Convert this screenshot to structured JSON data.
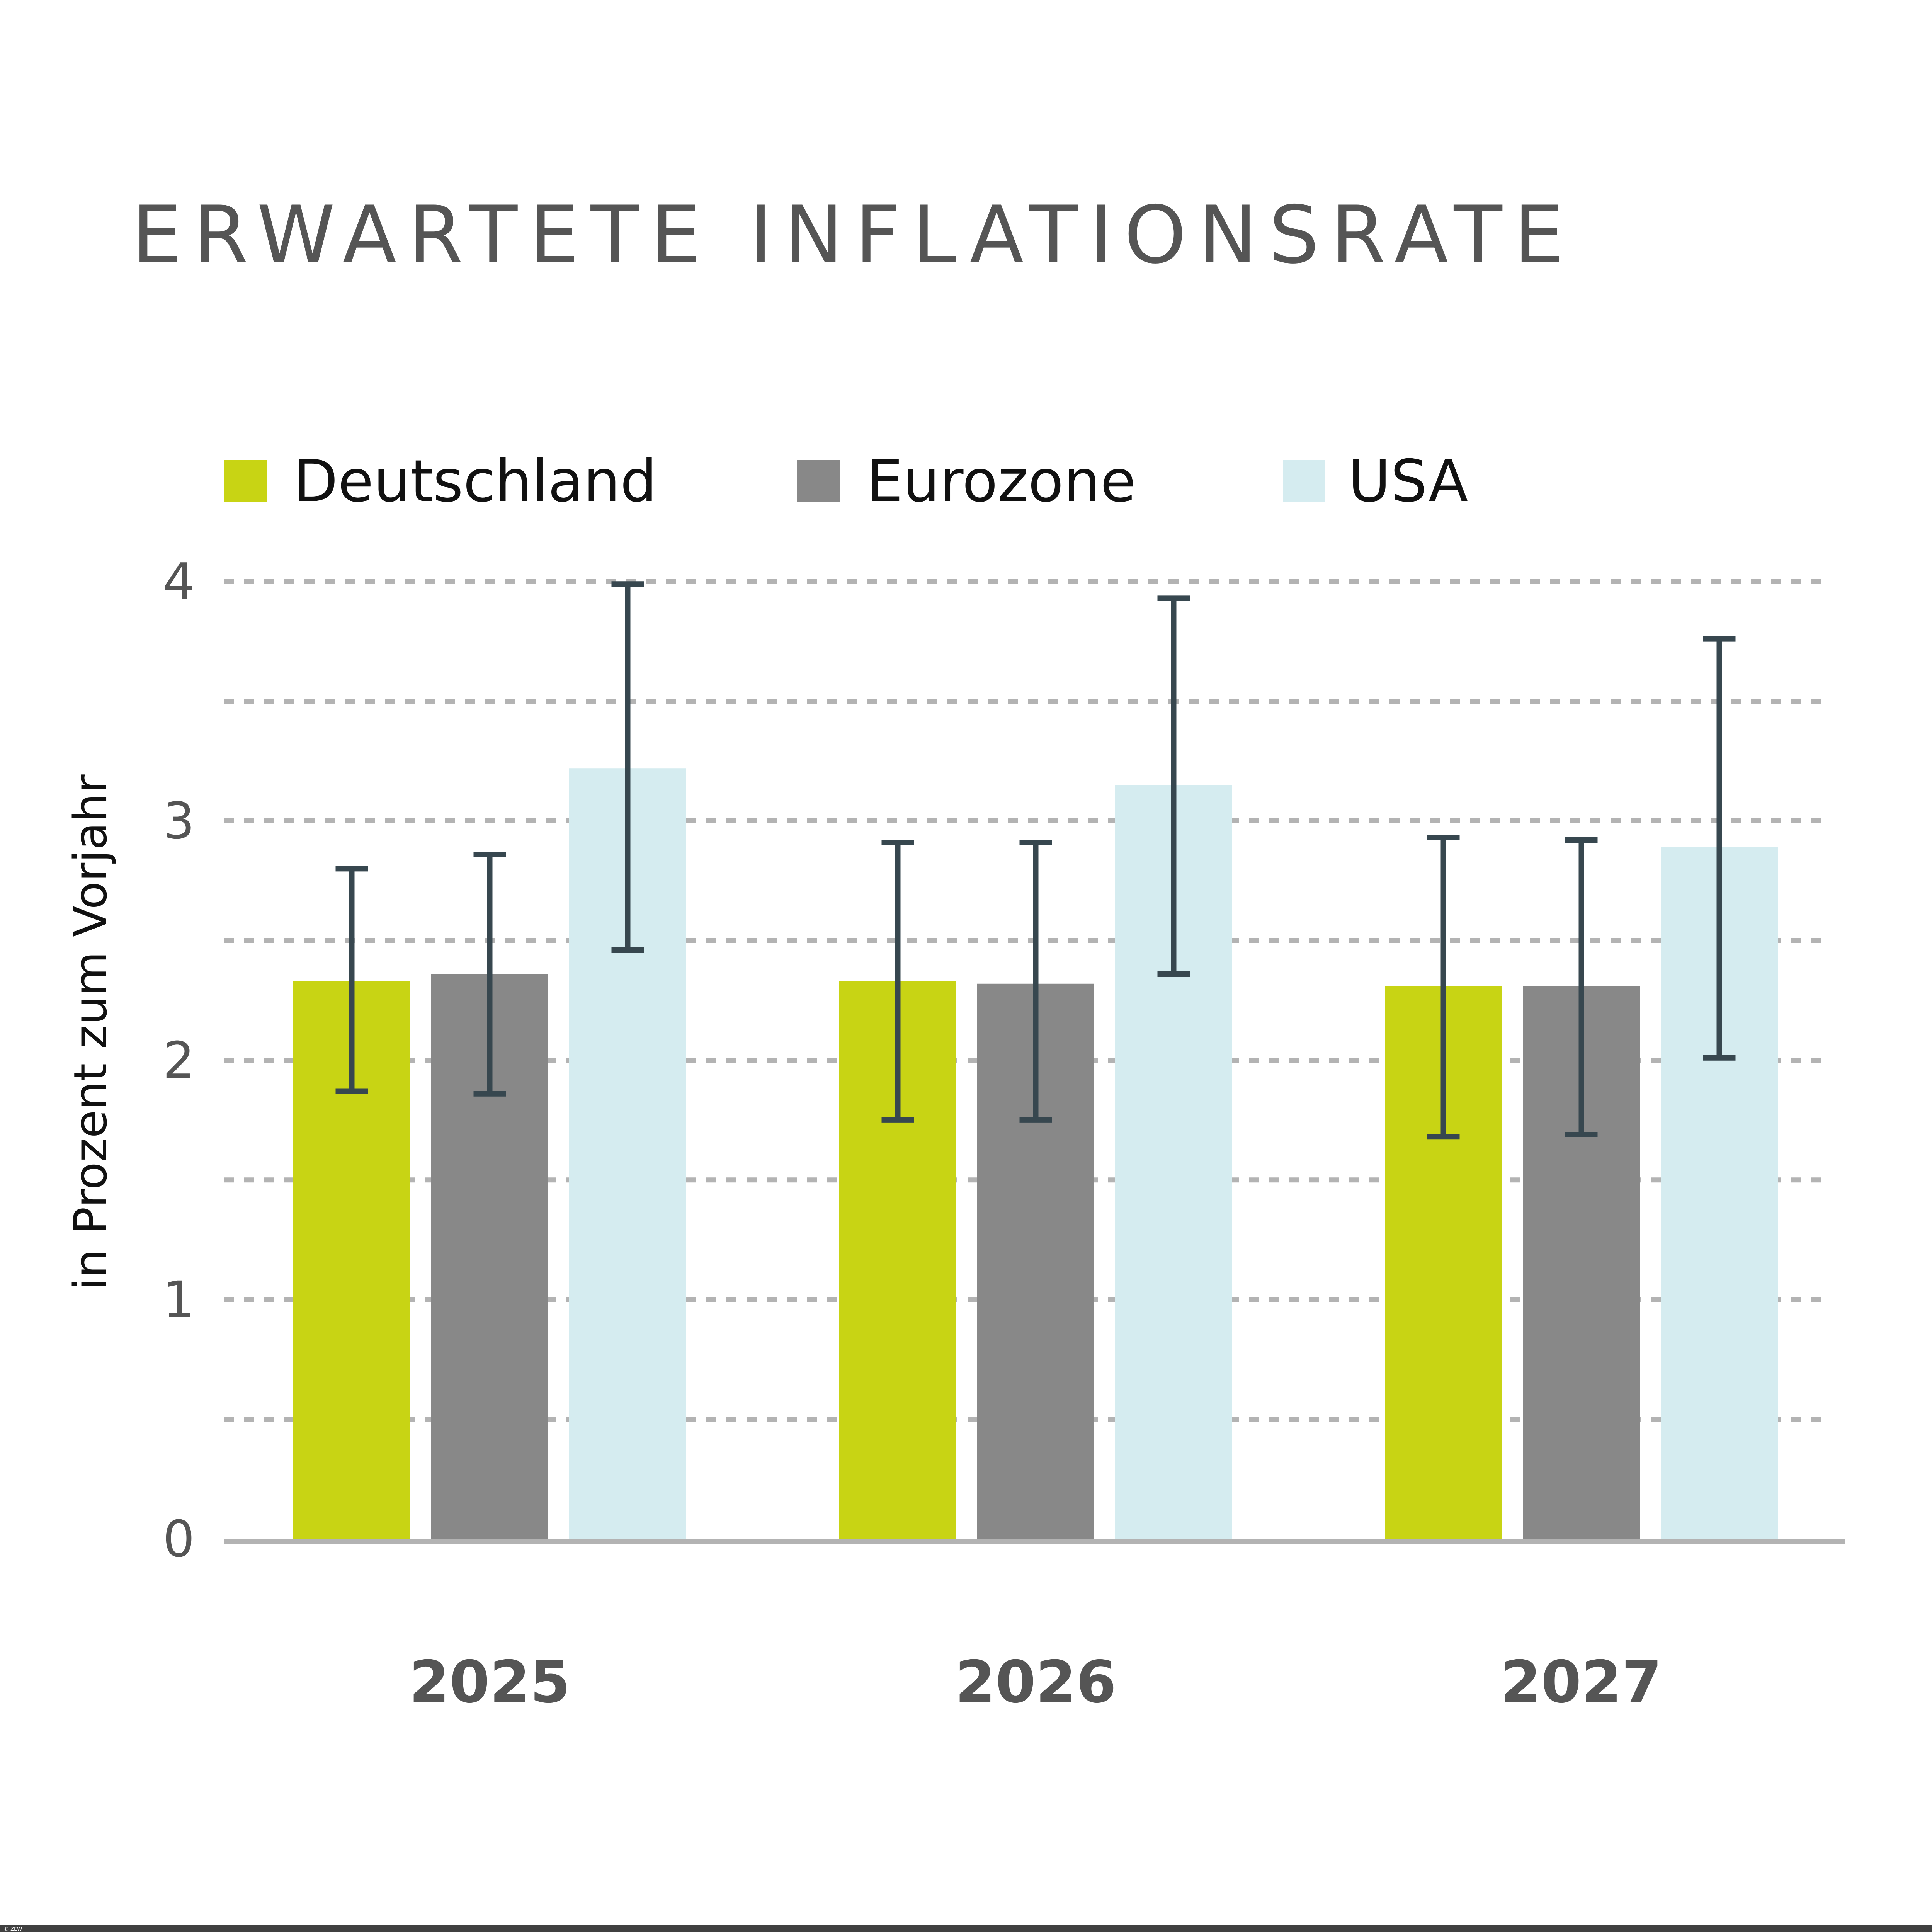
{
  "chart_data": {
    "type": "bar",
    "title": "ERWARTETE INFLATIONSRATE",
    "xlabel": "",
    "ylabel": "in Prozent zum Vorjahr",
    "ylim": [
      0,
      4
    ],
    "yticks": [
      "0",
      "1",
      "2",
      "3",
      "4"
    ],
    "grid": true,
    "legend_position": "top",
    "error_bars": true,
    "categories": [
      "2025",
      "2026",
      "2027"
    ],
    "series": [
      {
        "name": "Deutschland",
        "color": "#c8d414",
        "values": [
          2.33,
          2.33,
          2.31
        ],
        "lower": [
          1.87,
          1.75,
          1.68
        ],
        "upper": [
          2.8,
          2.91,
          2.93
        ]
      },
      {
        "name": "Eurozone",
        "color": "#888888",
        "values": [
          2.36,
          2.32,
          2.31
        ],
        "lower": [
          1.86,
          1.75,
          1.69
        ],
        "upper": [
          2.86,
          2.91,
          2.92
        ]
      },
      {
        "name": "USA",
        "color": "#d5ecf0",
        "values": [
          3.22,
          3.15,
          2.89
        ],
        "lower": [
          2.46,
          2.36,
          2.01
        ],
        "upper": [
          3.99,
          3.93,
          3.76
        ]
      }
    ],
    "colors": {
      "error_bar": "#37474f",
      "grid": "#b3b3b3",
      "text": "#555555"
    }
  },
  "footer": {
    "copyright": "© ZEW"
  }
}
